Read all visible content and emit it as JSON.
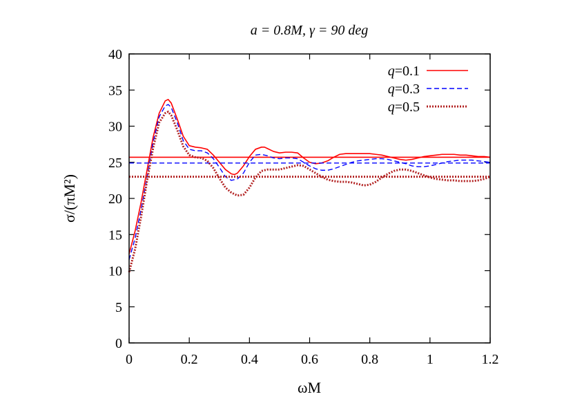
{
  "chart_data": {
    "type": "line",
    "title": "a = 0.8M, γ = 90 deg",
    "xlabel": "ωM",
    "ylabel": "σ/(πM²)",
    "xlim": [
      0,
      1.2
    ],
    "ylim": [
      0,
      40
    ],
    "xticks": [
      0,
      0.2,
      0.4,
      0.6,
      0.8,
      1,
      1.2
    ],
    "xtick_labels": [
      "0",
      "0.2",
      "0.4",
      "0.6",
      "0.8",
      "1",
      "1.2"
    ],
    "yticks": [
      0,
      5,
      10,
      15,
      20,
      25,
      30,
      35,
      40
    ],
    "ytick_labels": [
      "0",
      "5",
      "10",
      "15",
      "20",
      "25",
      "30",
      "35",
      "40"
    ],
    "grid": false,
    "legend_position": "top-right",
    "series": [
      {
        "name": "q=0.1",
        "color": "#ff0000",
        "style": "solid",
        "asymptote": 25.7,
        "x": [
          0,
          0.02,
          0.04,
          0.06,
          0.08,
          0.1,
          0.12,
          0.13,
          0.14,
          0.16,
          0.18,
          0.2,
          0.22,
          0.24,
          0.26,
          0.28,
          0.3,
          0.32,
          0.34,
          0.35,
          0.36,
          0.38,
          0.4,
          0.42,
          0.44,
          0.45,
          0.46,
          0.48,
          0.5,
          0.52,
          0.54,
          0.56,
          0.58,
          0.6,
          0.62,
          0.64,
          0.66,
          0.68,
          0.7,
          0.72,
          0.74,
          0.76,
          0.78,
          0.8,
          0.82,
          0.84,
          0.86,
          0.88,
          0.9,
          0.92,
          0.94,
          0.96,
          0.98,
          1.0,
          1.02,
          1.04,
          1.06,
          1.08,
          1.1,
          1.12,
          1.14,
          1.16,
          1.18,
          1.2
        ],
        "y": [
          12.3,
          15.5,
          19.5,
          24.0,
          28.5,
          31.8,
          33.5,
          33.7,
          33.2,
          31.0,
          28.6,
          27.3,
          27.1,
          27.0,
          26.8,
          26.0,
          25.0,
          24.0,
          23.4,
          23.3,
          23.5,
          24.5,
          25.8,
          26.8,
          27.1,
          27.1,
          26.9,
          26.5,
          26.3,
          26.4,
          26.4,
          26.3,
          25.6,
          25.0,
          24.8,
          24.9,
          25.2,
          25.7,
          26.1,
          26.2,
          26.2,
          26.2,
          26.2,
          26.2,
          26.1,
          26.0,
          25.8,
          25.6,
          25.4,
          25.3,
          25.4,
          25.6,
          25.8,
          25.9,
          26.0,
          26.1,
          26.1,
          26.1,
          26.0,
          26.0,
          25.9,
          25.8,
          25.8,
          25.7
        ]
      },
      {
        "name": "q=0.3",
        "color": "#0000ff",
        "style": "dashed",
        "asymptote": 24.9,
        "x": [
          0,
          0.02,
          0.04,
          0.06,
          0.08,
          0.1,
          0.12,
          0.13,
          0.14,
          0.16,
          0.18,
          0.2,
          0.22,
          0.24,
          0.26,
          0.28,
          0.3,
          0.32,
          0.34,
          0.36,
          0.38,
          0.4,
          0.42,
          0.44,
          0.46,
          0.48,
          0.5,
          0.52,
          0.54,
          0.56,
          0.58,
          0.6,
          0.62,
          0.64,
          0.66,
          0.68,
          0.7,
          0.72,
          0.74,
          0.76,
          0.78,
          0.8,
          0.82,
          0.84,
          0.86,
          0.88,
          0.9,
          0.92,
          0.94,
          0.96,
          0.98,
          1.0,
          1.02,
          1.04,
          1.06,
          1.08,
          1.1,
          1.12,
          1.14,
          1.16,
          1.18,
          1.2
        ],
        "y": [
          11.5,
          14.5,
          18.5,
          23.0,
          27.8,
          31.3,
          32.8,
          33.0,
          32.6,
          30.5,
          28.0,
          26.8,
          26.6,
          26.6,
          26.3,
          25.5,
          24.3,
          23.0,
          22.5,
          22.7,
          23.5,
          25.0,
          26.0,
          26.1,
          25.9,
          25.6,
          25.5,
          25.6,
          25.6,
          25.5,
          25.0,
          24.5,
          24.1,
          23.9,
          23.9,
          24.1,
          24.4,
          24.7,
          25.0,
          25.2,
          25.3,
          25.4,
          25.5,
          25.5,
          25.4,
          25.2,
          25.0,
          24.8,
          24.5,
          24.4,
          24.4,
          24.5,
          24.7,
          24.9,
          25.1,
          25.2,
          25.3,
          25.3,
          25.3,
          25.2,
          25.1,
          25.0
        ]
      },
      {
        "name": "q=0.5",
        "color": "#b22222",
        "style": "dotted",
        "asymptote": 23.0,
        "x": [
          0,
          0.02,
          0.04,
          0.06,
          0.08,
          0.1,
          0.12,
          0.13,
          0.14,
          0.16,
          0.18,
          0.2,
          0.22,
          0.24,
          0.26,
          0.28,
          0.3,
          0.32,
          0.34,
          0.36,
          0.38,
          0.4,
          0.42,
          0.44,
          0.46,
          0.48,
          0.5,
          0.52,
          0.54,
          0.56,
          0.58,
          0.6,
          0.62,
          0.64,
          0.66,
          0.68,
          0.7,
          0.72,
          0.74,
          0.76,
          0.78,
          0.8,
          0.82,
          0.84,
          0.86,
          0.88,
          0.9,
          0.92,
          0.94,
          0.96,
          0.98,
          1.0,
          1.02,
          1.04,
          1.06,
          1.08,
          1.1,
          1.12,
          1.14,
          1.16,
          1.18,
          1.2
        ],
        "y": [
          9.8,
          13.0,
          17.5,
          22.5,
          27.0,
          30.5,
          31.8,
          32.0,
          31.5,
          29.5,
          27.2,
          26.0,
          25.7,
          25.6,
          25.2,
          24.2,
          22.8,
          21.5,
          20.8,
          20.4,
          20.5,
          21.5,
          22.9,
          23.8,
          24.0,
          24.0,
          24.0,
          24.2,
          24.4,
          24.6,
          24.5,
          24.0,
          23.5,
          23.0,
          22.6,
          22.4,
          22.3,
          22.3,
          22.2,
          22.0,
          21.8,
          21.9,
          22.3,
          22.9,
          23.4,
          23.8,
          24.0,
          24.0,
          23.8,
          23.5,
          23.2,
          22.9,
          22.7,
          22.6,
          22.5,
          22.5,
          22.4,
          22.4,
          22.4,
          22.5,
          22.7,
          23.0
        ]
      }
    ]
  }
}
